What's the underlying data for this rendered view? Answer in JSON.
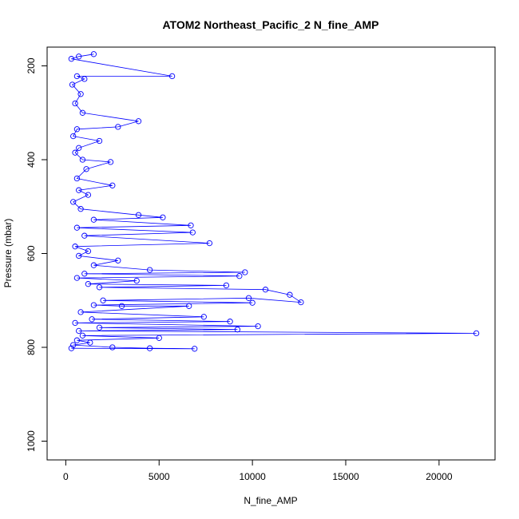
{
  "chart_data": {
    "type": "scatter",
    "title": "ATOM2 Northeast_Pacific_2 N_fine_AMP",
    "xlabel": "N_fine_AMP",
    "ylabel": "Pressure (mbar)",
    "xlim": [
      -1000,
      23000
    ],
    "ylim": [
      1040,
      160
    ],
    "y_inverted": true,
    "grid": false,
    "legend": "none",
    "x_ticks": [
      0,
      5000,
      10000,
      15000,
      20000
    ],
    "y_ticks": [
      200,
      400,
      600,
      800,
      1000
    ],
    "series": [
      {
        "color": "#0000ff",
        "marker": "open-circle",
        "connected": true,
        "points": [
          [
            1500,
            175
          ],
          [
            700,
            180
          ],
          [
            300,
            185
          ],
          [
            5700,
            222
          ],
          [
            600,
            222
          ],
          [
            1000,
            228
          ],
          [
            350,
            240
          ],
          [
            800,
            260
          ],
          [
            500,
            280
          ],
          [
            900,
            300
          ],
          [
            3900,
            318
          ],
          [
            2800,
            330
          ],
          [
            600,
            335
          ],
          [
            400,
            350
          ],
          [
            1800,
            360
          ],
          [
            700,
            375
          ],
          [
            500,
            385
          ],
          [
            900,
            400
          ],
          [
            2400,
            405
          ],
          [
            1100,
            420
          ],
          [
            600,
            440
          ],
          [
            2500,
            455
          ],
          [
            700,
            465
          ],
          [
            1200,
            475
          ],
          [
            400,
            490
          ],
          [
            800,
            505
          ],
          [
            3900,
            518
          ],
          [
            5200,
            523
          ],
          [
            1500,
            528
          ],
          [
            6700,
            540
          ],
          [
            600,
            545
          ],
          [
            6800,
            555
          ],
          [
            1000,
            562
          ],
          [
            7700,
            578
          ],
          [
            500,
            585
          ],
          [
            1200,
            595
          ],
          [
            700,
            605
          ],
          [
            2800,
            615
          ],
          [
            1500,
            625
          ],
          [
            4500,
            635
          ],
          [
            9600,
            640
          ],
          [
            1000,
            643
          ],
          [
            9300,
            648
          ],
          [
            600,
            652
          ],
          [
            3800,
            658
          ],
          [
            1200,
            665
          ],
          [
            8600,
            668
          ],
          [
            1800,
            672
          ],
          [
            10700,
            677
          ],
          [
            12000,
            688
          ],
          [
            12600,
            704
          ],
          [
            9800,
            695
          ],
          [
            2000,
            700
          ],
          [
            10000,
            705
          ],
          [
            1500,
            710
          ],
          [
            3000,
            712
          ],
          [
            6600,
            712
          ],
          [
            800,
            725
          ],
          [
            7400,
            735
          ],
          [
            1400,
            740
          ],
          [
            8800,
            745
          ],
          [
            500,
            748
          ],
          [
            10300,
            755
          ],
          [
            1800,
            758
          ],
          [
            9200,
            762
          ],
          [
            700,
            765
          ],
          [
            22000,
            770
          ],
          [
            900,
            775
          ],
          [
            5000,
            780
          ],
          [
            600,
            785
          ],
          [
            1300,
            790
          ],
          [
            400,
            795
          ],
          [
            2500,
            800
          ],
          [
            4500,
            802
          ],
          [
            6900,
            803
          ],
          [
            300,
            802
          ]
        ]
      }
    ]
  }
}
